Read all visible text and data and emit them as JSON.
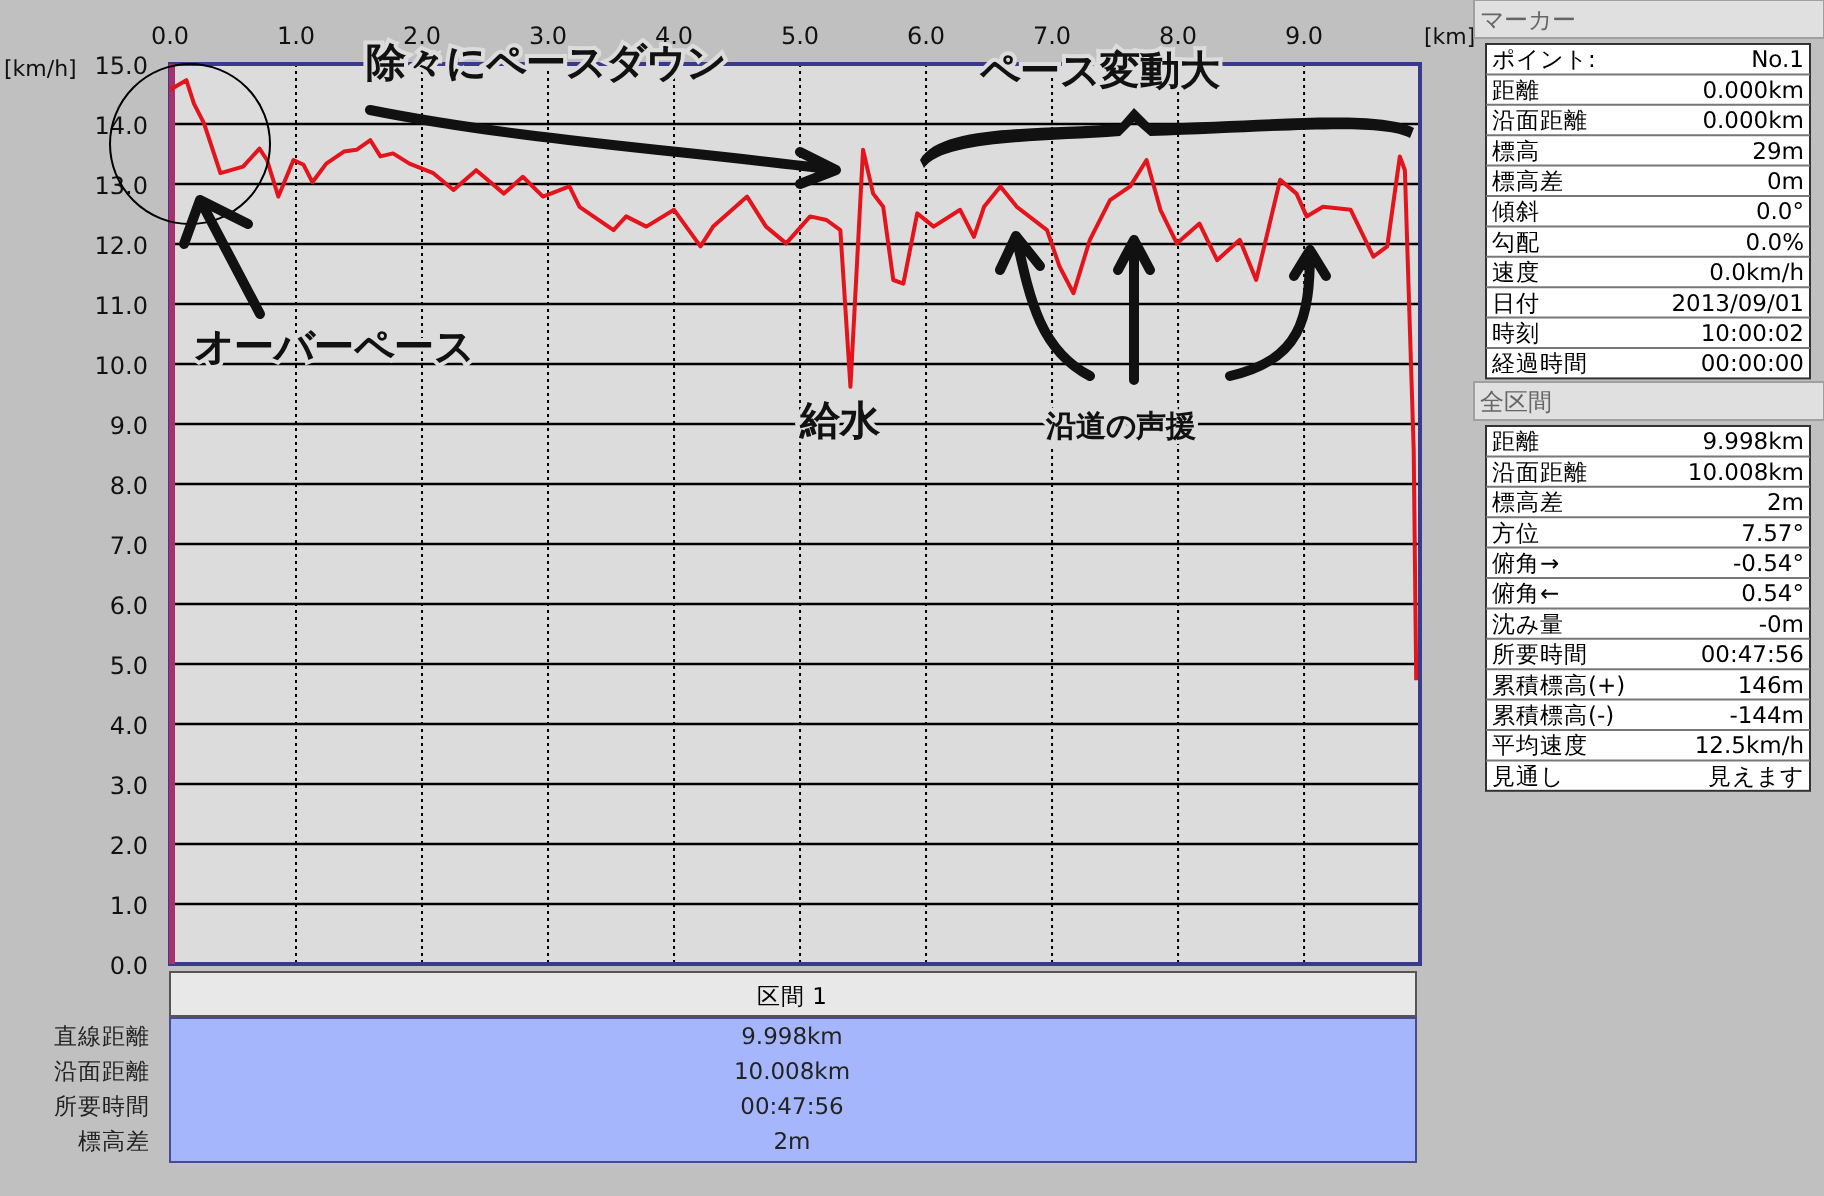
{
  "chart_data": [
    {
      "type": "line",
      "xlabel": "[km]",
      "ylabel": "[km/h]",
      "color": "#e3141c",
      "grid": true,
      "x": [
        0.0,
        0.13,
        0.19,
        0.27,
        0.4,
        0.58,
        0.71,
        0.77,
        0.86,
        0.98,
        1.06,
        1.13,
        1.24,
        1.38,
        1.48,
        1.59,
        1.67,
        1.77,
        1.9,
        2.09,
        2.25,
        2.43,
        2.65,
        2.8,
        2.96,
        3.17,
        3.25,
        3.52,
        3.62,
        3.78,
        4.0,
        4.21,
        4.31,
        4.58,
        4.73,
        4.89,
        5.08,
        5.21,
        5.32,
        5.4,
        5.5,
        5.58,
        5.66,
        5.74,
        5.82,
        5.93,
        6.06,
        6.27,
        6.38,
        6.46,
        6.59,
        6.72,
        6.96,
        7.06,
        7.17,
        7.3,
        7.46,
        7.62,
        7.75,
        7.86,
        7.99,
        8.17,
        8.31,
        8.49,
        8.62,
        8.81,
        8.94,
        9.02,
        9.15,
        9.37,
        9.55,
        9.66,
        9.76,
        9.8,
        9.87,
        9.89
      ],
      "values": [
        14.57,
        14.73,
        14.34,
        14.01,
        13.18,
        13.29,
        13.59,
        13.4,
        12.79,
        13.4,
        13.32,
        13.03,
        13.34,
        13.54,
        13.57,
        13.73,
        13.46,
        13.51,
        13.34,
        13.18,
        12.9,
        13.23,
        12.84,
        13.12,
        12.79,
        12.96,
        12.62,
        12.23,
        12.46,
        12.29,
        12.57,
        11.96,
        12.29,
        12.79,
        12.29,
        12.01,
        12.46,
        12.4,
        12.23,
        9.62,
        13.57,
        12.84,
        12.62,
        11.4,
        11.34,
        12.51,
        12.29,
        12.57,
        12.12,
        12.62,
        12.96,
        12.62,
        12.23,
        11.62,
        11.18,
        12.07,
        12.73,
        12.96,
        13.4,
        12.57,
        12.01,
        12.34,
        11.73,
        12.07,
        11.4,
        13.07,
        12.84,
        12.46,
        12.62,
        12.57,
        11.79,
        11.96,
        13.46,
        13.23,
        8.57,
        4.73
      ],
      "xlim": [
        0,
        9.92
      ],
      "ylim": [
        0,
        15
      ],
      "xticks": [
        {
          "value": 0,
          "label": "0.0"
        },
        {
          "value": 1,
          "label": "1.0"
        },
        {
          "value": 2,
          "label": "2.0"
        },
        {
          "value": 3,
          "label": "3.0"
        },
        {
          "value": 4,
          "label": "4.0"
        },
        {
          "value": 5,
          "label": "5.0"
        },
        {
          "value": 6,
          "label": "6.0"
        },
        {
          "value": 7,
          "label": "7.0"
        },
        {
          "value": 8,
          "label": "8.0"
        },
        {
          "value": 9,
          "label": "9.0"
        }
      ],
      "yticks": [
        {
          "value": 0,
          "label": "0.0"
        },
        {
          "value": 1,
          "label": "1.0"
        },
        {
          "value": 2,
          "label": "2.0"
        },
        {
          "value": 3,
          "label": "3.0"
        },
        {
          "value": 4,
          "label": "4.0"
        },
        {
          "value": 5,
          "label": "5.0"
        },
        {
          "value": 6,
          "label": "6.0"
        },
        {
          "value": 7,
          "label": "7.0"
        },
        {
          "value": 8,
          "label": "8.0"
        },
        {
          "value": 9,
          "label": "9.0"
        },
        {
          "value": 10,
          "label": "10.0"
        },
        {
          "value": 11,
          "label": "11.0"
        },
        {
          "value": 12,
          "label": "12.0"
        },
        {
          "value": 13,
          "label": "13.0"
        },
        {
          "value": 14,
          "label": "14.0"
        },
        {
          "value": 15,
          "label": "15.0"
        }
      ],
      "annotations": [
        "オーバーペース",
        "除々にペースダウン",
        "ペース変動大",
        "給水",
        "沿道の声援"
      ]
    },
    {
      "type": "other",
      "title": "マーカー",
      "annotations": [
        "ポイント:",
        "No.1",
        "距離",
        "0.000km",
        "沿面距離",
        "0.000km",
        "標高",
        "29m",
        "標高差",
        "0m",
        "傾斜",
        "0.0°",
        "勾配",
        "0.0%",
        "速度",
        "0.0km/h",
        "日付",
        "2013/09/01",
        "時刻",
        "10:00:02",
        "経過時間",
        "00:00:00"
      ]
    },
    {
      "type": "other",
      "title": "全区間",
      "annotations": [
        "距離",
        "9.998km",
        "沿面距離",
        "10.008km",
        "標高差",
        "2m",
        "方位",
        "7.57°",
        "俯角→",
        "-0.54°",
        "俯角←",
        "0.54°",
        "沈み量",
        "-0m",
        "所要時間",
        "00:47:56",
        "累積標高(+)",
        "146m",
        "累積標高(-)",
        "-144m",
        "平均速度",
        "12.5km/h",
        "見通し",
        "見えます"
      ]
    },
    {
      "type": "other",
      "title": "区間 1",
      "annotations": [
        "直線距離",
        "9.998km",
        "沿面距離",
        "10.008km",
        "所要時間",
        "00:47:56",
        "標高差",
        "2m"
      ]
    }
  ]
}
